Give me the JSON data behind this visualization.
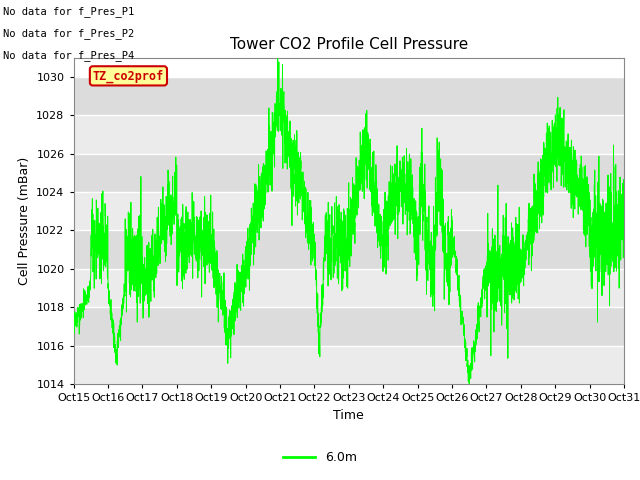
{
  "title": "Tower CO2 Profile Cell Pressure",
  "xlabel": "Time",
  "ylabel": "Cell Pressure (mBar)",
  "ylim": [
    1014,
    1031
  ],
  "xlim": [
    0,
    16
  ],
  "yticks": [
    1014,
    1016,
    1018,
    1020,
    1022,
    1024,
    1026,
    1028,
    1030
  ],
  "xtick_labels": [
    "Oct 15",
    "Oct 16",
    "Oct 17",
    "Oct 18",
    "Oct 19",
    "Oct 20",
    "Oct 21",
    "Oct 22",
    "Oct 23",
    "Oct 24",
    "Oct 25",
    "Oct 26",
    "Oct 27",
    "Oct 28",
    "Oct 29",
    "Oct 30",
    "Oct 31"
  ],
  "xtick_positions": [
    0,
    1,
    2,
    3,
    4,
    5,
    6,
    7,
    8,
    9,
    10,
    11,
    12,
    13,
    14,
    15,
    16
  ],
  "line_color": "#00FF00",
  "line_label": "6.0m",
  "no_data_labels": [
    "No data for f_Pres_P1",
    "No data for f_Pres_P2",
    "No data for f_Pres_P4"
  ],
  "tooltip_text": "TZ_co2prof",
  "tooltip_bg": "#FFFF99",
  "tooltip_border": "#CC0000",
  "bg_color_light": "#EBEBEB",
  "bg_color_dark": "#DCDCDC",
  "grid_color": "#FFFFFF",
  "title_fontsize": 11,
  "axis_fontsize": 9,
  "tick_fontsize": 8,
  "fig_width": 6.4,
  "fig_height": 4.8,
  "dpi": 100
}
